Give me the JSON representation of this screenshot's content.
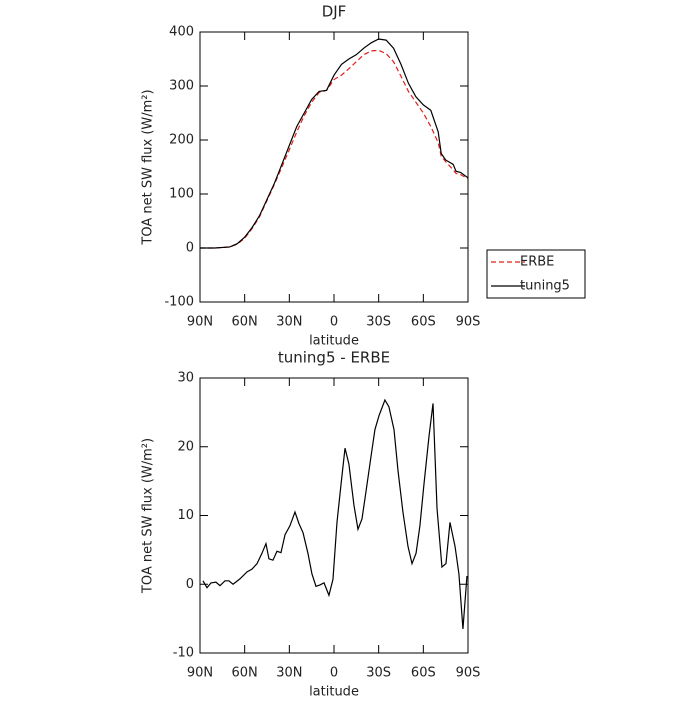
{
  "chart_data": [
    {
      "type": "line",
      "title": "DJF",
      "x_label": "latitude",
      "y_label": "TOA net SW flux (W/m²)",
      "x": [
        90,
        80,
        70,
        65,
        60,
        55,
        50,
        45,
        40,
        35,
        30,
        25,
        20,
        15,
        10,
        5,
        0,
        -5,
        -10,
        -15,
        -20,
        -25,
        -30,
        -35,
        -40,
        -45,
        -50,
        -55,
        -60,
        -65,
        -70,
        -72,
        -75,
        -80,
        -82,
        -85,
        -90
      ],
      "series": [
        {
          "name": "ERBE",
          "color": "#e0201b",
          "line_style": "dashed",
          "values": [
            0,
            0,
            2,
            7,
            18,
            36,
            58,
            88,
            118,
            150,
            182,
            215,
            245,
            270,
            288,
            292,
            312,
            320,
            332,
            345,
            358,
            365,
            366,
            360,
            345,
            318,
            290,
            270,
            250,
            225,
            195,
            170,
            160,
            145,
            138,
            136,
            128
          ]
        },
        {
          "name": "tuning5",
          "color": "#000000",
          "line_style": "solid",
          "values": [
            0,
            0,
            2,
            8,
            20,
            38,
            60,
            90,
            120,
            155,
            190,
            225,
            250,
            275,
            290,
            292,
            320,
            340,
            350,
            358,
            370,
            380,
            387,
            385,
            370,
            340,
            305,
            280,
            265,
            255,
            215,
            175,
            163,
            155,
            142,
            140,
            130
          ]
        }
      ],
      "xlim": [
        90,
        -90
      ],
      "xticks": [
        {
          "value": 90,
          "label": "90N"
        },
        {
          "value": 60,
          "label": "60N"
        },
        {
          "value": 30,
          "label": "30N"
        },
        0,
        {
          "value": -30,
          "label": "30S"
        },
        {
          "value": -60,
          "label": "60S"
        },
        {
          "value": -90,
          "label": "90S"
        }
      ],
      "ylim": [
        -100,
        400
      ],
      "yticks": [
        -100,
        0,
        100,
        200,
        300,
        400
      ],
      "legend": "right"
    },
    {
      "type": "line",
      "title": "tuning5 - ERBE",
      "x_label": "latitude",
      "y_label": "TOA net SW flux (W/m²)",
      "x": [
        88,
        85.3,
        82.6,
        79.3,
        76.6,
        73.2,
        70.6,
        67.8,
        63.1,
        58.4,
        55.1,
        51.7,
        48.4,
        45.7,
        43.7,
        41,
        38.3,
        35.6,
        32.9,
        29.6,
        26.2,
        23.5,
        20.8,
        17.5,
        14.8,
        12.1,
        9.4,
        6.7,
        3.4,
        0.7,
        -2,
        -4.7,
        -7.4,
        -10,
        -13.4,
        -16.1,
        -18.8,
        -21.5,
        -24.8,
        -27.5,
        -30.2,
        -34.2,
        -36.9,
        -40.3,
        -43,
        -46.3,
        -49.7,
        -52.4,
        -55.1,
        -57.7,
        -60.4,
        -63.8,
        -66.5,
        -69.2,
        -72.5,
        -75.2,
        -77.9,
        -81.3,
        -83.9,
        -86.6,
        -89.3
      ],
      "series": [
        {
          "color": "#000000",
          "line_style": "solid",
          "values": [
            0.5,
            -0.5,
            0.2,
            0.3,
            -0.2,
            0.5,
            0.5,
            0,
            0.8,
            1.8,
            2.2,
            3,
            4.5,
            5.9,
            3.7,
            3.5,
            4.8,
            4.6,
            7.2,
            8.5,
            10.5,
            8.8,
            7.5,
            4.5,
            1.5,
            -0.3,
            -0.1,
            0.2,
            -1.6,
            0.7,
            9,
            14.5,
            19.8,
            17.5,
            11.5,
            8,
            9.5,
            13.5,
            18.5,
            22.5,
            24.5,
            26.8,
            25.8,
            22.5,
            16.5,
            10.5,
            5.5,
            3,
            4.5,
            8.5,
            14.5,
            21.5,
            26.3,
            11,
            2.5,
            3,
            9,
            5.5,
            1.5,
            -6.5,
            1.2
          ]
        }
      ],
      "xlim": [
        90,
        -90
      ],
      "xticks": [
        {
          "value": 90,
          "label": "90N"
        },
        {
          "value": 60,
          "label": "60N"
        },
        {
          "value": 30,
          "label": "30N"
        },
        0,
        {
          "value": -30,
          "label": "30S"
        },
        {
          "value": -60,
          "label": "60S"
        },
        {
          "value": -90,
          "label": "90S"
        }
      ],
      "ylim": [
        -10,
        30
      ],
      "yticks": [
        -10,
        0,
        10,
        20,
        30
      ]
    }
  ]
}
